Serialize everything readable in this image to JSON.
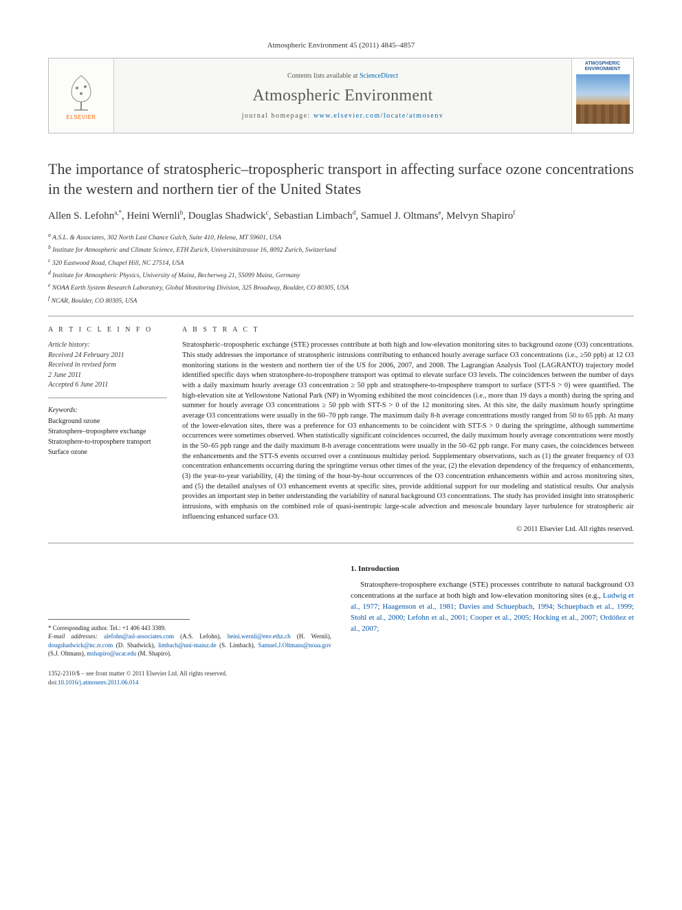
{
  "citation": "Atmospheric Environment 45 (2011) 4845–4857",
  "banner": {
    "contents_prefix": "Contents lists available at ",
    "contents_link": "ScienceDirect",
    "journal_name": "Atmospheric Environment",
    "homepage_prefix": "journal homepage: ",
    "homepage_link": "www.elsevier.com/locate/atmosenv",
    "publisher_label": "ELSEVIER",
    "cover_label_1": "ATMOSPHERIC",
    "cover_label_2": "ENVIRONMENT"
  },
  "title": "The importance of stratospheric–tropospheric transport in affecting surface ozone concentrations in the western and northern tier of the United States",
  "authors_html": "Allen S. Lefohn<sup>a,*</sup>, Heini Wernli<sup>b</sup>, Douglas Shadwick<sup>c</sup>, Sebastian Limbach<sup>d</sup>, Samuel J. Oltmans<sup>e</sup>, Melvyn Shapiro<sup>f</sup>",
  "affiliations": [
    "a A.S.L. & Associates, 302 North Last Chance Gulch, Suite 410, Helena, MT 59601, USA",
    "b Institute for Atmospheric and Climate Science, ETH Zurich, Universitätstrasse 16, 8092 Zurich, Switzerland",
    "c 320 Eastwood Road, Chapel Hill, NC 27514, USA",
    "d Institute for Atmospheric Physics, University of Mainz, Becherweg 21, 55099 Mainz, Germany",
    "e NOAA Earth System Research Laboratory, Global Monitoring Division, 325 Broadway, Boulder, CO 80305, USA",
    "f NCAR, Boulder, CO 80305, USA"
  ],
  "article_info_heading": "A R T I C L E   I N F O",
  "abstract_heading": "A B S T R A C T",
  "history": {
    "title": "Article history:",
    "received": "Received 24 February 2011",
    "revised1": "Received in revised form",
    "revised2": "2 June 2011",
    "accepted": "Accepted 6 June 2011"
  },
  "keywords_label": "Keywords:",
  "keywords": [
    "Background ozone",
    "Stratosphere–troposphere exchange",
    "Stratosphere-to-troposphere transport",
    "Surface ozone"
  ],
  "abstract": "Stratospheric–tropospheric exchange (STE) processes contribute at both high and low-elevation monitoring sites to background ozone (O3) concentrations. This study addresses the importance of stratospheric intrusions contributing to enhanced hourly average surface O3 concentrations (i.e., ≥50 ppb) at 12 O3 monitoring stations in the western and northern tier of the US for 2006, 2007, and 2008. The Lagrangian Analysis Tool (LAGRANTO) trajectory model identified specific days when stratosphere-to-troposphere transport was optimal to elevate surface O3 levels. The coincidences between the number of days with a daily maximum hourly average O3 concentration ≥ 50 ppb and stratosphere-to-troposphere transport to surface (STT-S > 0) were quantified. The high-elevation site at Yellowstone National Park (NP) in Wyoming exhibited the most coincidences (i.e., more than 19 days a month) during the spring and summer for hourly average O3 concentrations ≥ 50 ppb with STT-S > 0 of the 12 monitoring sites. At this site, the daily maximum hourly springtime average O3 concentrations were usually in the 60–70 ppb range. The maximum daily 8-h average concentrations mostly ranged from 50 to 65 ppb. At many of the lower-elevation sites, there was a preference for O3 enhancements to be coincident with STT-S > 0 during the springtime, although summertime occurrences were sometimes observed. When statistically significant coincidences occurred, the daily maximum hourly average concentrations were mostly in the 50–65 ppb range and the daily maximum 8-h average concentrations were usually in the 50–62 ppb range. For many cases, the coincidences between the enhancements and the STT-S events occurred over a continuous multiday period. Supplementary observations, such as (1) the greater frequency of O3 concentration enhancements occurring during the springtime versus other times of the year, (2) the elevation dependency of the frequency of enhancements, (3) the year-to-year variability, (4) the timing of the hour-by-hour occurrences of the O3 concentration enhancements within and across monitoring sites, and (5) the detailed analyses of O3 enhancement events at specific sites, provide additional support for our modeling and statistical results. Our analysis provides an important step in better understanding the variability of natural background O3 concentrations. The study has provided insight into stratospheric intrusions, with emphasis on the combined role of quasi-isentropic large-scale advection and mesoscale boundary layer turbulence for stratospheric air influencing enhanced surface O3.",
  "copyright": "© 2011 Elsevier Ltd. All rights reserved.",
  "footnotes": {
    "corr_label": "* Corresponding author. Tel.: +1 406 443 3389.",
    "email_label": "E-mail addresses:",
    "emails": [
      {
        "addr": "alefohn@asl-associates.com",
        "who": "(A.S. Lefohn),"
      },
      {
        "addr": "heini.wernli@env.ethz.ch",
        "who": "(H. Wernli),"
      },
      {
        "addr": "dougshadwick@nc.rr.com",
        "who": "(D. Shadwick),"
      },
      {
        "addr": "limbach@uni-mainz.de",
        "who": "(S. Limbach),"
      },
      {
        "addr": "Samuel.J.Oltmans@noaa.gov",
        "who": "(S.J. Oltmans),"
      },
      {
        "addr": "mshapiro@ucar.edu",
        "who": "(M. Shapiro)."
      }
    ]
  },
  "intro": {
    "heading": "1. Introduction",
    "para": "Stratosphere-troposphere exchange (STE) processes contribute to natural background O3 concentrations at the surface at both high and low-elevation monitoring sites (e.g., ",
    "refs": "Ludwig et al., 1977; Haagenson et al., 1981; Davies and Schuepbach, 1994; Schuepbach et al., 1999; Stohl et al., 2000; Lefohn et al., 2001; Cooper et al., 2005; Hocking et al., 2007; Ordóñez et al., 2007;"
  },
  "bottom": {
    "front_matter": "1352-2310/$ – see front matter © 2011 Elsevier Ltd. All rights reserved.",
    "doi_label": "doi:",
    "doi": "10.1016/j.atmosenv.2011.06.014"
  },
  "colors": {
    "link": "#0055aa",
    "elsevier_orange": "#ff6a00",
    "rule": "#999999"
  }
}
